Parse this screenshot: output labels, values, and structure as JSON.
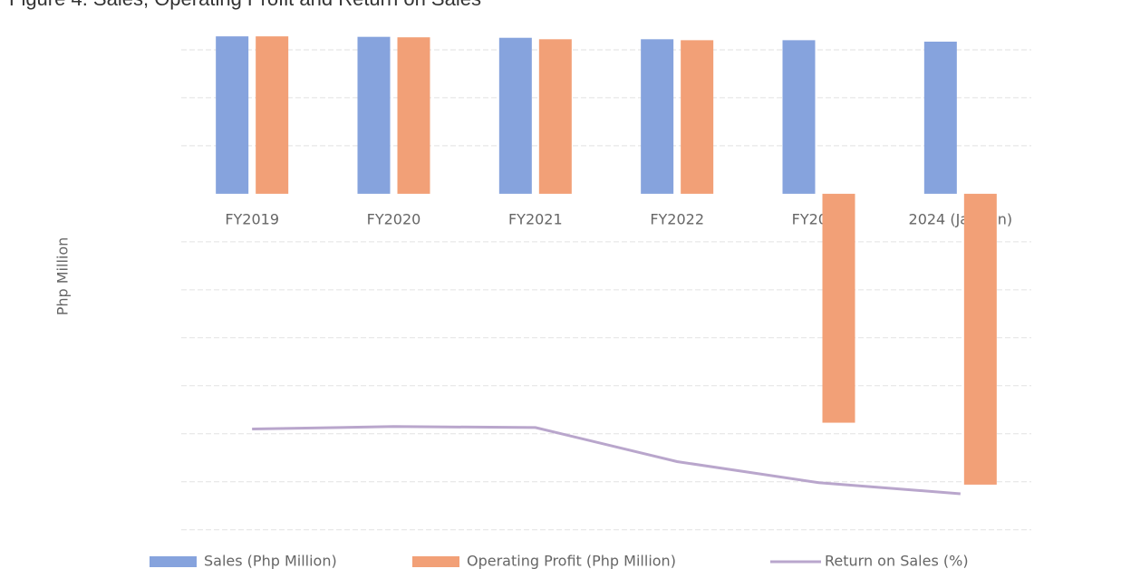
{
  "chart_data": {
    "type": "bar",
    "title": "Figure 4. Sales, Operating Profit and Return on Sales",
    "y_label": "Php Million",
    "categories": [
      "FY2019",
      "FY2020",
      "FY2021",
      "FY2022",
      "FY2023",
      "2024 (Jan-Jun)"
    ],
    "series": [
      {
        "name": "Sales (Php Million)",
        "color": "#86a3dd",
        "values": [
          3.28,
          3.27,
          3.25,
          3.22,
          3.2,
          3.17
        ]
      },
      {
        "name": "Operating Profit (Php Million)",
        "color": "#f2a077",
        "values": [
          3.28,
          3.26,
          3.22,
          3.2,
          -4.77,
          -6.06
        ]
      },
      {
        "name": "Return on Sales (%)",
        "color": "#b9a6cc",
        "type": "line",
        "values": [
          -4.9,
          -4.85,
          -4.87,
          -5.58,
          -6.02,
          -6.25
        ]
      }
    ],
    "ylim": [
      -7.1,
      3.66
    ],
    "yticks": [
      3,
      2,
      1,
      -1,
      -2,
      -3,
      -4,
      -5,
      -6,
      -7
    ],
    "grid": true
  }
}
